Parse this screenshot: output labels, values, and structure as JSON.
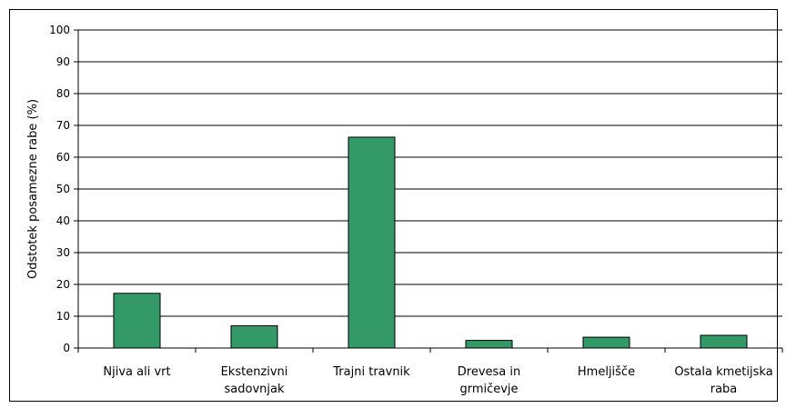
{
  "chart_data": {
    "type": "bar",
    "title": "",
    "xlabel": "",
    "ylabel": "Odstotek posamezne rabe (%)",
    "ylim": [
      0,
      100
    ],
    "yticks": [
      0,
      10,
      20,
      30,
      40,
      50,
      60,
      70,
      80,
      90,
      100
    ],
    "categories": [
      [
        "Njiva ali vrt"
      ],
      [
        "Ekstenzivni",
        "sadovnjak"
      ],
      [
        "Trajni travnik"
      ],
      [
        "Drevesa in",
        "grmičevje"
      ],
      [
        "Hmeljišče"
      ],
      [
        "Ostala kmetijska",
        "raba"
      ]
    ],
    "values": [
      17.2,
      7.0,
      66.3,
      2.4,
      3.4,
      4.0
    ],
    "grid": true,
    "legend": "none",
    "colors": {
      "bar_fill": "#339966",
      "bar_stroke": "#000000",
      "grid": "#000000",
      "axis": "#000000"
    }
  }
}
